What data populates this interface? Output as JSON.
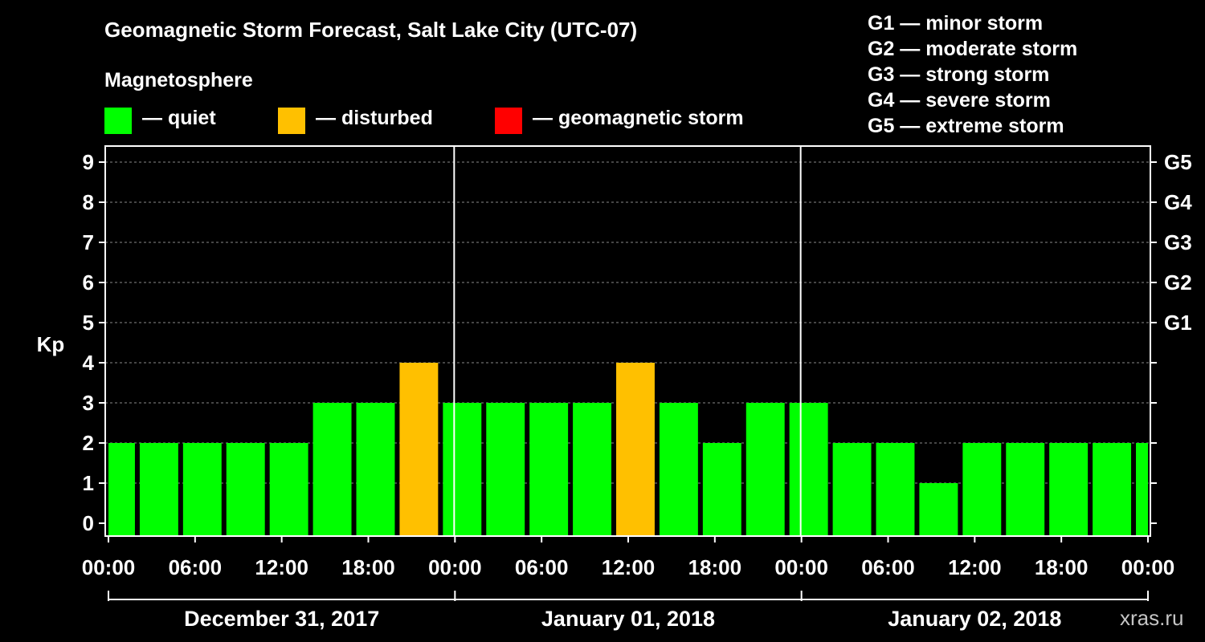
{
  "title": "Geomagnetic Storm Forecast, Salt Lake City (UTC-07)",
  "legend": {
    "title": "Magnetosphere",
    "items": [
      {
        "label": "— quiet",
        "color": "#00ff00"
      },
      {
        "label": "— disturbed",
        "color": "#ffc000"
      },
      {
        "label": "— geomagnetic storm",
        "color": "#ff0000"
      }
    ]
  },
  "storm_levels": [
    "G1 — minor storm",
    "G2 — moderate storm",
    "G3 — strong storm",
    "G4 — severe storm",
    "G5 — extreme storm"
  ],
  "watermark": "xras.ru",
  "chart_data": {
    "type": "bar",
    "title": "Geomagnetic Storm Forecast, Salt Lake City (UTC-07)",
    "ylabel": "Kp",
    "xlabel": "",
    "ylim": [
      0,
      9
    ],
    "yticks": [
      0,
      1,
      2,
      3,
      4,
      5,
      6,
      7,
      8,
      9
    ],
    "right_axis_labels": [
      {
        "value": 5,
        "label": "G1"
      },
      {
        "value": 6,
        "label": "G2"
      },
      {
        "value": 7,
        "label": "G3"
      },
      {
        "value": 8,
        "label": "G4"
      },
      {
        "value": 9,
        "label": "G5"
      }
    ],
    "grid": true,
    "x_hours_range": [
      0,
      72
    ],
    "x_tick_hours": [
      0,
      6,
      12,
      18,
      24,
      30,
      36,
      42,
      48,
      54,
      60,
      66,
      72
    ],
    "x_tick_labels": [
      "00:00",
      "06:00",
      "12:00",
      "18:00",
      "00:00",
      "06:00",
      "12:00",
      "18:00",
      "00:00",
      "06:00",
      "12:00",
      "18:00",
      "00:00"
    ],
    "day_separators_hours": [
      24,
      48
    ],
    "days": [
      {
        "label": "December 31, 2017",
        "start": 0,
        "end": 24
      },
      {
        "label": "January 01, 2018",
        "start": 24,
        "end": 48
      },
      {
        "label": "January 02, 2018",
        "start": 48,
        "end": 72
      }
    ],
    "bar_interval_hours": 3,
    "start_hour": -1,
    "values": [
      2,
      2,
      2,
      2,
      2,
      3,
      3,
      4,
      3,
      3,
      3,
      3,
      4,
      3,
      2,
      3,
      3,
      2,
      2,
      1,
      2,
      2,
      2,
      2,
      2
    ],
    "color_thresholds": {
      "quiet_max": 3,
      "disturbed_max": 4
    }
  }
}
